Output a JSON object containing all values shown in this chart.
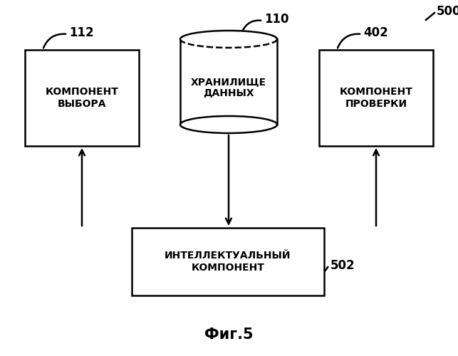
{
  "title": "Фиг.5",
  "label_500": "500",
  "label_112": "112",
  "label_110": "110",
  "label_402": "402",
  "label_502": "502",
  "box_left_text": "КОМПОНЕНТ\nВЫБОРА",
  "box_middle_text": "ХРАНИЛИЩЕ\nДАННЫХ",
  "box_right_text": "КОМПОНЕНТ\nПРОВЕРКИ",
  "box_bottom_text": "ИНТЕЛЛЕКТУАЛЬНЫЙ\nКОМПОНЕНТ",
  "bg_color": "#ffffff",
  "box_color": "#ffffff",
  "box_edge_color": "#000000",
  "text_color": "#000000",
  "arrow_color": "#000000",
  "font_size_box": 10,
  "font_size_label": 11,
  "font_size_title": 15
}
